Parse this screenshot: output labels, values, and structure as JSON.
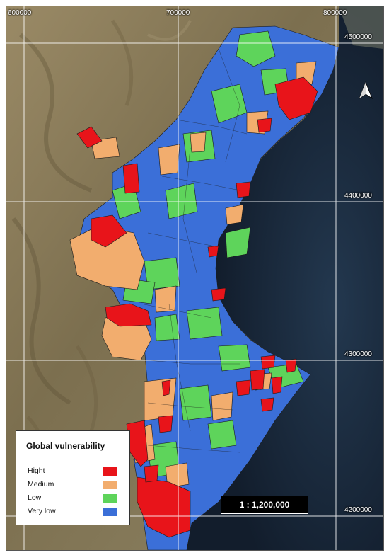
{
  "map": {
    "coords_top": [
      "600000",
      "700000",
      "800000"
    ],
    "coords_right": [
      "4500000",
      "4400000",
      "4300000",
      "4200000"
    ]
  },
  "legend": {
    "title": "Global vulnerability",
    "items": [
      {
        "label": "Hight",
        "color": "#e8141a"
      },
      {
        "label": "Medium",
        "color": "#f2ad6e"
      },
      {
        "label": "Low",
        "color": "#5ed45b"
      },
      {
        "label": "Very low",
        "color": "#3b6fd8"
      }
    ]
  },
  "scale": {
    "label": "1 : 1,200,000"
  },
  "north_arrow": {
    "icon": "north-arrow-icon"
  },
  "colors": {
    "sea": "#17263a",
    "land": "#8c7e5e",
    "grid": "#ffffff"
  }
}
